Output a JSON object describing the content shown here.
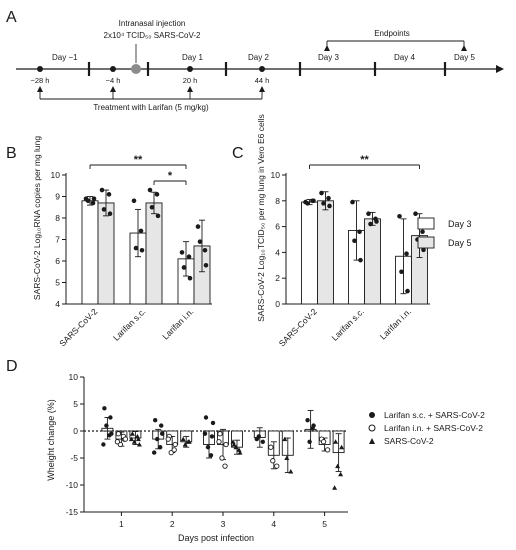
{
  "panels": {
    "A": {
      "letter": "A",
      "injection_label": "Intranasal injection",
      "injection_dose": "2x10⁴ TCID₅₀ SARS-CoV-2",
      "endpoints_label": "Endpoints",
      "day_labels": [
        "Day −1",
        "Day 1",
        "Day 2",
        "Day 3",
        "Day 4",
        "Day 5"
      ],
      "hour_labels": [
        "−28 h",
        "−4 h",
        "20 h",
        "44 h"
      ],
      "treatment_label": "Treatment with Larifan (5 mg/kg)"
    },
    "B": {
      "letter": "B"
    },
    "C": {
      "letter": "C"
    },
    "D": {
      "letter": "D"
    }
  },
  "legend_days": [
    "Day 3",
    "Day 5"
  ],
  "legend_groups": [
    "Larifan s.c. + SARS-CoV-2",
    "Larifan i.n. + SARS-CoV-2",
    "SARS-CoV-2"
  ],
  "colors": {
    "day3": "#ffffff",
    "day5": "#e6e6e6",
    "ink": "#1a1a1a"
  },
  "chart_data": [
    {
      "id": "B",
      "type": "bar",
      "ylabel": "SARS-CoV-2 Log₁₀RNA copies per mg lung",
      "categories": [
        "SARS-CoV-2",
        "Larifan s.c.",
        "Larifan i.n."
      ],
      "ylim": [
        4,
        10
      ],
      "yticks": [
        4,
        5,
        6,
        7,
        8,
        9,
        10
      ],
      "series": [
        {
          "name": "Day 3",
          "values": [
            8.8,
            7.3,
            6.1
          ],
          "errors": [
            0.2,
            1.1,
            0.8
          ],
          "points": [
            [
              8.9,
              8.7,
              8.8,
              8.9
            ],
            [
              8.8,
              7.4,
              6.6,
              6.5
            ],
            [
              6.4,
              6.2,
              5.7,
              5.2
            ]
          ]
        },
        {
          "name": "Day 5",
          "values": [
            8.7,
            8.7,
            6.7
          ],
          "errors": [
            0.6,
            0.5,
            1.2
          ],
          "points": [
            [
              9.3,
              9.1,
              8.4,
              8.2
            ],
            [
              9.3,
              9.1,
              8.5,
              8.1
            ],
            [
              7.6,
              6.5,
              6.9,
              5.8
            ]
          ]
        }
      ],
      "significance": [
        {
          "label": "**",
          "from": [
            0,
            0
          ],
          "to": [
            2,
            0
          ]
        },
        {
          "label": "*",
          "from": [
            1,
            1
          ],
          "to": [
            2,
            0
          ]
        }
      ]
    },
    {
      "id": "C",
      "type": "bar",
      "ylabel": "SARS-CoV-2 Log₁₀TCID₅₀ per mg lung in Vero E6 cells",
      "categories": [
        "SARS-CoV-2",
        "Larifan s.c.",
        "Larifan i.n."
      ],
      "ylim": [
        0,
        10
      ],
      "yticks": [
        0,
        2,
        4,
        6,
        8,
        10
      ],
      "series": [
        {
          "name": "Day 3",
          "values": [
            7.9,
            5.7,
            3.7
          ],
          "errors": [
            0.2,
            2.3,
            2.9
          ],
          "points": [
            [
              7.9,
              8.0,
              7.8,
              8.0
            ],
            [
              7.9,
              5.6,
              4.9,
              3.4
            ],
            [
              6.8,
              3.9,
              2.5,
              1.0
            ]
          ]
        },
        {
          "name": "Day 5",
          "values": [
            8.0,
            6.6,
            5.3
          ],
          "errors": [
            0.7,
            0.5,
            1.7
          ],
          "points": [
            [
              8.6,
              8.2,
              7.8,
              7.6
            ],
            [
              7.0,
              6.6,
              6.2,
              6.4
            ],
            [
              7.0,
              5.6,
              5.0,
              4.2
            ]
          ]
        }
      ],
      "significance": [
        {
          "label": "**",
          "from": [
            0,
            0
          ],
          "to": [
            2,
            1
          ]
        }
      ]
    },
    {
      "id": "D",
      "type": "bar",
      "xlabel": "Days post infection",
      "ylabel": "Wheight change (%)",
      "categories": [
        "1",
        "2",
        "3",
        "4",
        "5"
      ],
      "ylim": [
        -15,
        10
      ],
      "yticks": [
        -15,
        -10,
        -5,
        0,
        5,
        10
      ],
      "series": [
        {
          "name": "Larifan s.c. + SARS-CoV-2",
          "values": [
            0.5,
            -1.5,
            -2.5,
            -1.2,
            0.3
          ],
          "errors": [
            2.0,
            1.8,
            2.5,
            1.8,
            3.5
          ],
          "points": [
            [
              4.2,
              2.5,
              1.0,
              -0.8,
              -2.5,
              -0.5
            ],
            [
              2.0,
              1.0,
              -1.5,
              -3.0,
              -4.0,
              -0.5
            ],
            [
              2.5,
              -1.0,
              -3.0,
              -4.5,
              -0.5,
              1.5
            ],
            [
              -1.5,
              -2.0,
              -1.0
            ],
            [
              2.0,
              1.0,
              -2.0,
              0.5
            ]
          ]
        },
        {
          "name": "Larifan i.n. + SARS-CoV-2",
          "values": [
            -1.5,
            -2.5,
            -2.5,
            -4.5,
            -2.5
          ],
          "errors": [
            1.3,
            1.5,
            2.8,
            2.5,
            1.2
          ],
          "points": [
            [
              -0.5,
              -1.5,
              -2.5,
              -1.0,
              -2.0,
              -1.5
            ],
            [
              -1.0,
              -2.5,
              -4.0,
              -3.5,
              -1.5
            ],
            [
              -0.5,
              -2.5,
              -5.0,
              -6.5,
              -2.0
            ],
            [
              -3.0,
              -6.5,
              -5.5
            ],
            [
              -1.5,
              -3.5,
              -2.0
            ]
          ]
        },
        {
          "name": "SARS-CoV-2",
          "values": [
            -1.3,
            -2.0,
            -3.0,
            -4.5,
            -4.0
          ],
          "errors": [
            1.2,
            1.0,
            1.3,
            3.2,
            3.5
          ],
          "points": [
            [
              -0.5,
              -1.5,
              -2.0,
              -1.0,
              -1.5,
              -2.5
            ],
            [
              -1.5,
              -2.0,
              -2.5,
              -2.0
            ],
            [
              -2.5,
              -4.0,
              -3.0,
              -3.5,
              -2.0
            ],
            [
              -1.5,
              -7.5,
              -5.0
            ],
            [
              -2.0,
              -3.0,
              -6.5,
              -8.0,
              -10.5
            ]
          ]
        }
      ],
      "zero_line": "dotted"
    }
  ]
}
